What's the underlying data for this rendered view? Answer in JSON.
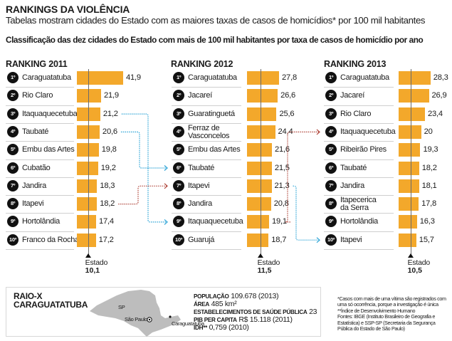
{
  "header": {
    "title": "RANKINGS DA VIOLÊNCIA",
    "subtitle": "Tabelas mostram cidades do Estado com as maiores taxas de casos de homicídios* por 100 mil habitantes",
    "heading": "Classificação das dez cidades do Estado com mais de 100 mil habitantes por taxa de casos de homicídio por ano"
  },
  "chart_data": {
    "type": "bar",
    "orientation": "horizontal",
    "title": "RANKINGS DA VIOLÊNCIA",
    "subtitle": "Tabelas mostram cidades do Estado com as maiores taxas de casos de homicídios* por 100 mil habitantes",
    "unit": "casos de homicídio por 100 mil habitantes",
    "reference_label": "Estado",
    "panels": [
      {
        "title": "RANKING 2011",
        "year": 2011,
        "categories": [
          "Caraguatatuba",
          "Rio Claro",
          "Itaquaquecetuba",
          "Taubaté",
          "Embu das Artes",
          "Cubatão",
          "Jandira",
          "Itapevi",
          "Hortolândia",
          "Franco da Rocha"
        ],
        "ranks": [
          "1º",
          "2º",
          "3º",
          "4º",
          "5º",
          "6º",
          "7º",
          "8º",
          "9º",
          "10º"
        ],
        "values": [
          41.9,
          21.9,
          21.2,
          20.6,
          19.8,
          19.2,
          18.3,
          18.2,
          17.4,
          17.2
        ],
        "value_labels": [
          "41,9",
          "21,9",
          "21,2",
          "20,6",
          "19,8",
          "19,2",
          "18,3",
          "18,2",
          "17,4",
          "17,2"
        ],
        "estado": 10.1,
        "estado_label": "10,1"
      },
      {
        "title": "RANKING 2012",
        "year": 2012,
        "categories": [
          "Caraguatatuba",
          "Jacareí",
          "Guaratinguetá",
          "Ferraz de Vasconcelos",
          "Embu das Artes",
          "Taubaté",
          "Itapevi",
          "Jandira",
          "Itaquaquecetuba",
          "Guarujá"
        ],
        "display_names": [
          [
            "Caraguatatuba"
          ],
          [
            "Jacareí"
          ],
          [
            "Guaratinguetá"
          ],
          [
            "Ferraz de",
            "Vasconcelos"
          ],
          [
            "Embu das Artes"
          ],
          [
            "Taubaté"
          ],
          [
            "Itapevi"
          ],
          [
            "Jandira"
          ],
          [
            "Itaquaquecetuba"
          ],
          [
            "Guarujá"
          ]
        ],
        "ranks": [
          "1º",
          "2º",
          "3º",
          "4º",
          "5º",
          "6º",
          "7º",
          "8º",
          "9º",
          "10º"
        ],
        "values": [
          27.8,
          26.6,
          25.6,
          24.4,
          21.6,
          21.5,
          21.3,
          20.8,
          19.1,
          18.7
        ],
        "value_labels": [
          "27,8",
          "26,6",
          "25,6",
          "24,4",
          "21,6",
          "21,5",
          "21,3",
          "20,8",
          "19,1",
          "18,7"
        ],
        "estado": 11.5,
        "estado_label": "11,5"
      },
      {
        "title": "RANKING 2013",
        "year": 2013,
        "categories": [
          "Caraguatatuba",
          "Jacareí",
          "Rio Claro",
          "Itaquaquecetuba",
          "Ribeirão Pires",
          "Taubaté",
          "Jandira",
          "Itapecerica da Serra",
          "Hortolândia",
          "Itapevi"
        ],
        "display_names": [
          [
            "Caraguatatuba"
          ],
          [
            "Jacareí"
          ],
          [
            "Rio Claro"
          ],
          [
            "Itaquaquecetuba"
          ],
          [
            "Ribeirão Pires"
          ],
          [
            "Taubaté"
          ],
          [
            "Jandira"
          ],
          [
            "Itapecerica",
            "da Serra"
          ],
          [
            "Hortolândia"
          ],
          [
            "Itapevi"
          ]
        ],
        "ranks": [
          "1º",
          "2º",
          "3º",
          "4º",
          "5º",
          "6º",
          "7º",
          "8º",
          "9º",
          "10º"
        ],
        "values": [
          28.3,
          26.9,
          23.4,
          20.0,
          19.3,
          18.2,
          18.1,
          17.8,
          16.3,
          15.7
        ],
        "value_labels": [
          "28,3",
          "26,9",
          "23,4",
          "20",
          "19,3",
          "18,2",
          "18,1",
          "17,8",
          "16,3",
          "15,7"
        ],
        "estado": 10.5,
        "estado_label": "10,5"
      }
    ],
    "annotations": [
      {
        "from": "2011",
        "from_rank": 3,
        "to": "2012",
        "to_rank": 9,
        "city": "Itaquaquecetuba",
        "color": "#2aa3d6"
      },
      {
        "from": "2011",
        "from_rank": 4,
        "to": "2012",
        "to_rank": 6,
        "city": "Taubaté",
        "color": "#2aa3d6"
      },
      {
        "from": "2011",
        "from_rank": 8,
        "to": "2012",
        "to_rank": 7,
        "city": "Itapevi",
        "color": "#b0453a"
      },
      {
        "from": "2012",
        "from_rank": 9,
        "to": "2013",
        "to_rank": 4,
        "city": "Itaquaquecetuba",
        "color": "#b0453a"
      },
      {
        "from": "2012",
        "from_rank": 7,
        "to": "2013",
        "to_rank": 10,
        "city": "Itapevi",
        "color": "#2aa3d6"
      }
    ]
  },
  "colors": {
    "bar": "#f3a82b",
    "connector_down": "#2aa3d6",
    "connector_up": "#b0453a",
    "map": "#bdbdbd"
  },
  "raio_x": {
    "title_line1": "RAIO-X",
    "title_line2": "CARAGUATATUBA",
    "map_label_state": "SP",
    "map_label_capital": "São Paulo",
    "map_label_city": "Caraguatatuba",
    "stats": [
      {
        "key": "POPULAÇÃO",
        "value": "109.678 (2013)"
      },
      {
        "key": "ÁREA",
        "value": "485 km²"
      },
      {
        "key": "ESTABELECIMENTOS DE SAÚDE PÚBLICA",
        "value": "23"
      },
      {
        "key": "PIB PER CAPITA",
        "value": "R$ 15.118 (2011)"
      },
      {
        "key": "IDH**",
        "value": "0,759 (2010)"
      }
    ]
  },
  "notes": {
    "line1": "*Casos com mais de uma vítima são registrados com uma só ocorrência, porque a investigação é única",
    "line2": "**Índice de Desenvolvimento Humano",
    "line3": "Fontes: IBGE (Instituto Brasileiro de Geografia e Estatística) e SSP-SP (Secretaria da Segurança Pública do Estado de São Paulo)"
  }
}
